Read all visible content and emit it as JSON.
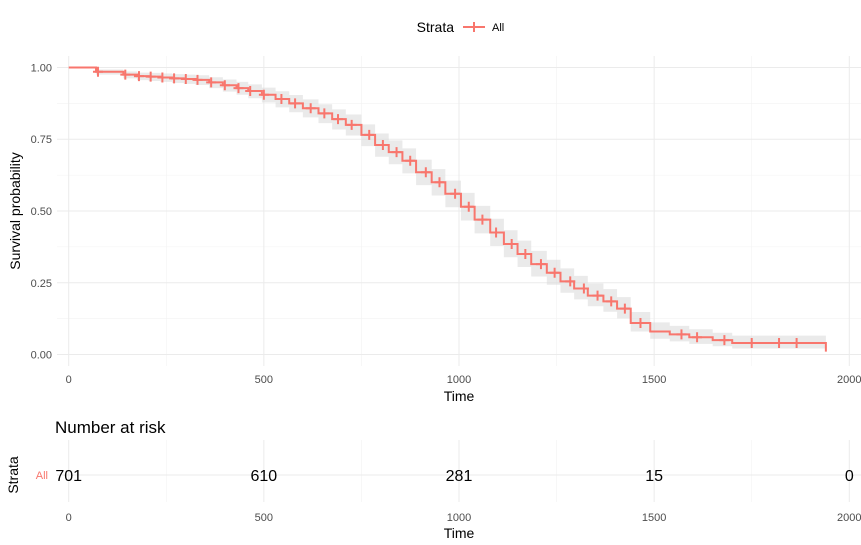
{
  "chart_data": [
    {
      "type": "line",
      "chart_subtype": "kaplan-meier survival curve (step) with confidence band and censor marks",
      "xlabel": "Time",
      "ylabel": "Survival probability",
      "xlim": [
        -30,
        2030
      ],
      "ylim": [
        -0.04,
        1.04
      ],
      "x_ticks": [
        0,
        500,
        1000,
        1500,
        2000
      ],
      "y_ticks": [
        0.0,
        0.25,
        0.5,
        0.75,
        1.0
      ],
      "y_tick_labels": [
        "0.00",
        "0.25",
        "0.50",
        "0.75",
        "1.00"
      ],
      "grid": true,
      "legend": {
        "title": "Strata",
        "position": "top",
        "entries": [
          "All"
        ]
      },
      "color": "#F8766D",
      "band_color": "#d9d9d9",
      "series": [
        {
          "name": "All",
          "x": [
            0,
            70,
            140,
            175,
            205,
            235,
            265,
            295,
            325,
            360,
            395,
            430,
            460,
            495,
            530,
            565,
            600,
            640,
            675,
            710,
            750,
            785,
            820,
            855,
            890,
            930,
            965,
            1005,
            1040,
            1080,
            1115,
            1150,
            1185,
            1225,
            1260,
            1295,
            1330,
            1370,
            1405,
            1440,
            1490,
            1540,
            1590,
            1650,
            1700,
            1940
          ],
          "y": [
            1.0,
            0.985,
            0.975,
            0.97,
            0.968,
            0.965,
            0.962,
            0.96,
            0.957,
            0.948,
            0.938,
            0.928,
            0.918,
            0.905,
            0.89,
            0.875,
            0.858,
            0.84,
            0.82,
            0.8,
            0.765,
            0.73,
            0.705,
            0.675,
            0.635,
            0.6,
            0.56,
            0.515,
            0.47,
            0.425,
            0.385,
            0.35,
            0.315,
            0.285,
            0.255,
            0.23,
            0.205,
            0.185,
            0.16,
            0.11,
            0.08,
            0.07,
            0.06,
            0.05,
            0.04,
            0.01
          ],
          "lower": [
            1.0,
            0.975,
            0.962,
            0.956,
            0.953,
            0.95,
            0.946,
            0.943,
            0.939,
            0.928,
            0.916,
            0.905,
            0.893,
            0.878,
            0.861,
            0.844,
            0.826,
            0.806,
            0.784,
            0.763,
            0.726,
            0.689,
            0.663,
            0.631,
            0.59,
            0.554,
            0.513,
            0.467,
            0.422,
            0.378,
            0.339,
            0.305,
            0.272,
            0.243,
            0.215,
            0.192,
            0.168,
            0.149,
            0.126,
            0.08,
            0.055,
            0.046,
            0.037,
            0.029,
            0.021,
            0.0
          ],
          "upper": [
            1.0,
            0.993,
            0.986,
            0.982,
            0.981,
            0.979,
            0.977,
            0.975,
            0.973,
            0.966,
            0.958,
            0.95,
            0.941,
            0.93,
            0.917,
            0.904,
            0.889,
            0.872,
            0.854,
            0.836,
            0.802,
            0.77,
            0.746,
            0.718,
            0.679,
            0.646,
            0.606,
            0.563,
            0.518,
            0.473,
            0.433,
            0.397,
            0.361,
            0.33,
            0.3,
            0.274,
            0.248,
            0.228,
            0.2,
            0.148,
            0.112,
            0.1,
            0.088,
            0.076,
            0.066,
            0.066
          ],
          "censor_x": [
            75,
            145,
            180,
            210,
            240,
            270,
            300,
            330,
            365,
            400,
            435,
            465,
            500,
            545,
            580,
            620,
            655,
            690,
            725,
            770,
            805,
            840,
            875,
            915,
            950,
            990,
            1025,
            1060,
            1095,
            1135,
            1170,
            1210,
            1245,
            1285,
            1320,
            1355,
            1390,
            1425,
            1465,
            1570,
            1610,
            1680,
            1750,
            1820,
            1865
          ]
        }
      ]
    },
    {
      "type": "table",
      "title": "Number at risk",
      "ylabel": "Strata",
      "xlabel": "Time",
      "x_ticks": [
        0,
        500,
        1000,
        1500,
        2000
      ],
      "rows": [
        {
          "name": "All",
          "times": [
            0,
            500,
            1000,
            1500,
            2000
          ],
          "values": [
            701,
            610,
            281,
            15,
            0
          ]
        }
      ]
    }
  ]
}
